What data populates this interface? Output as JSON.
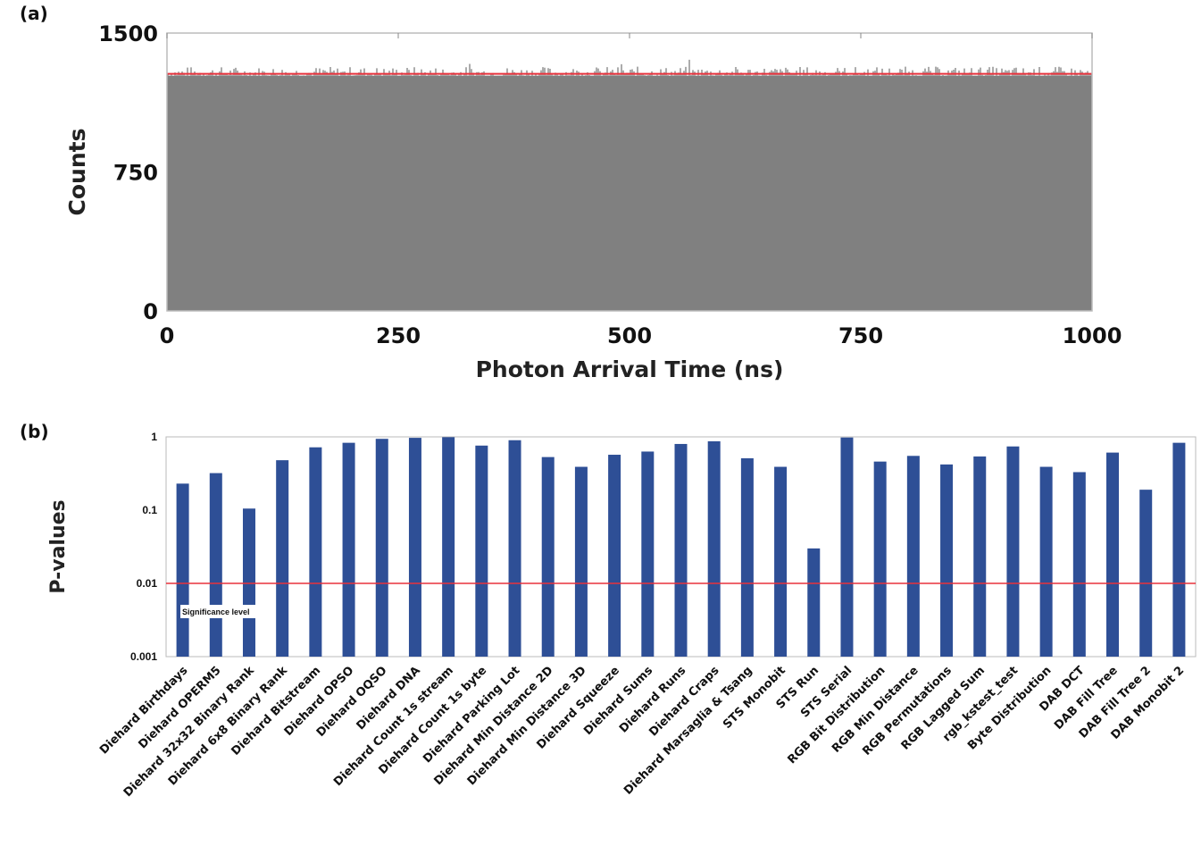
{
  "chart_data": [
    {
      "panel": "(a)",
      "type": "bar",
      "xlabel": "Photon Arrival Time (ns)",
      "ylabel": "Counts",
      "xlim": [
        0,
        1000
      ],
      "ylim": [
        0,
        1500
      ],
      "xticks": [
        "0",
        "250",
        "500",
        "750",
        "1000"
      ],
      "yticks": [
        "0",
        "750",
        "1500"
      ],
      "fill_level": 1270,
      "mean_line": 1280,
      "noise_peak_max": 1360,
      "colors": {
        "fill": "#808080",
        "noise": "#5a5a5a",
        "mean_line": "#e8323c",
        "frame": "#bbbbbb"
      },
      "grid": false
    },
    {
      "panel": "(b)",
      "type": "bar",
      "xlabel": "",
      "ylabel": "P-values",
      "yscale": "log",
      "ylim": [
        0.001,
        1
      ],
      "yticks": [
        "1",
        "0.1",
        "0.01",
        "0.001"
      ],
      "significance_level": 0.01,
      "significance_label": "Significance level",
      "categories": [
        "Diehard Birthdays",
        "Diehard OPERM5",
        "Diehard 32x32 Binary Rank",
        "Diehard 6x8 Binary Rank",
        "Diehard Bitstream",
        "Diehard OPSO",
        "Diehard OQSO",
        "Diehard DNA",
        "Diehard Count 1s stream",
        "Diehard Count 1s byte",
        "Diehard Parking Lot",
        "Diehard Min Distance 2D",
        "Diehard Min Distance 3D",
        "Diehard Squeeze",
        "Diehard Sums",
        "Diehard Runs",
        "Diehard Craps",
        "Diehard Marsaglia & Tsang",
        "STS Monobit",
        "STS Run",
        "STS Serial",
        "RGB Bit Distribution",
        "RGB Min Distance",
        "RGB Permutations",
        "RGB Lagged Sum",
        "rgb_kstest_test",
        "Byte Distribution",
        "DAB DCT",
        "DAB Fill Tree",
        "DAB Fill Tree 2",
        "DAB Monobit 2"
      ],
      "values": [
        0.23,
        0.32,
        0.105,
        0.48,
        0.72,
        0.83,
        0.94,
        0.97,
        0.99,
        0.76,
        0.9,
        0.53,
        0.39,
        0.57,
        0.63,
        0.8,
        0.87,
        0.51,
        0.39,
        0.03,
        0.98,
        0.46,
        0.55,
        0.42,
        0.54,
        0.74,
        0.39,
        0.33,
        0.61,
        0.19,
        0.83
      ],
      "colors": {
        "bar": "#2e4f96",
        "significance_line": "#e8323c",
        "frame": "#bbbbbb"
      },
      "grid": false
    }
  ]
}
